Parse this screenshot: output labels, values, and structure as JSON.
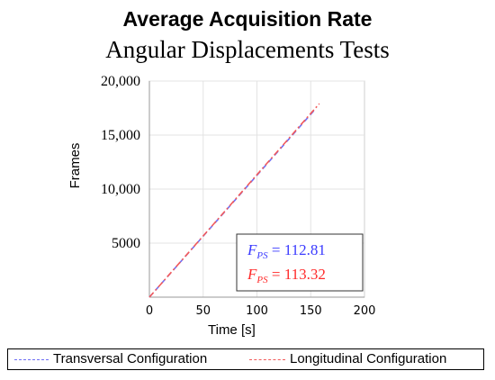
{
  "chart_data": {
    "type": "line",
    "title": "Average Acquisition Rate",
    "subtitle": "Angular Displacements Tests",
    "xlabel": "Time [s]",
    "ylabel": "Frames",
    "xlim": [
      0,
      200
    ],
    "ylim": [
      0,
      20000
    ],
    "x_ticks": [
      "0",
      "50",
      "100",
      "150",
      "200"
    ],
    "y_ticks": [
      "5000",
      "10,000",
      "15,000",
      "20,000"
    ],
    "grid": true,
    "legend_position": "bottom",
    "series": [
      {
        "name": "Transversal Configuration",
        "color": "#6f6ff5",
        "dash": "dashed",
        "x": [
          0,
          153
        ],
        "y": [
          0,
          17260
        ]
      },
      {
        "name": "Longitudinal Configuration",
        "color": "#f25a5a",
        "dash": "dashdot",
        "x": [
          0,
          158
        ],
        "y": [
          0,
          17905
        ]
      }
    ],
    "annotations": [
      {
        "label": "F",
        "sub": "PS",
        "value": "= 112.81",
        "color": "#3b3bff"
      },
      {
        "label": "F",
        "sub": "PS",
        "value": "= 113.32",
        "color": "#ff2a2a"
      }
    ]
  }
}
